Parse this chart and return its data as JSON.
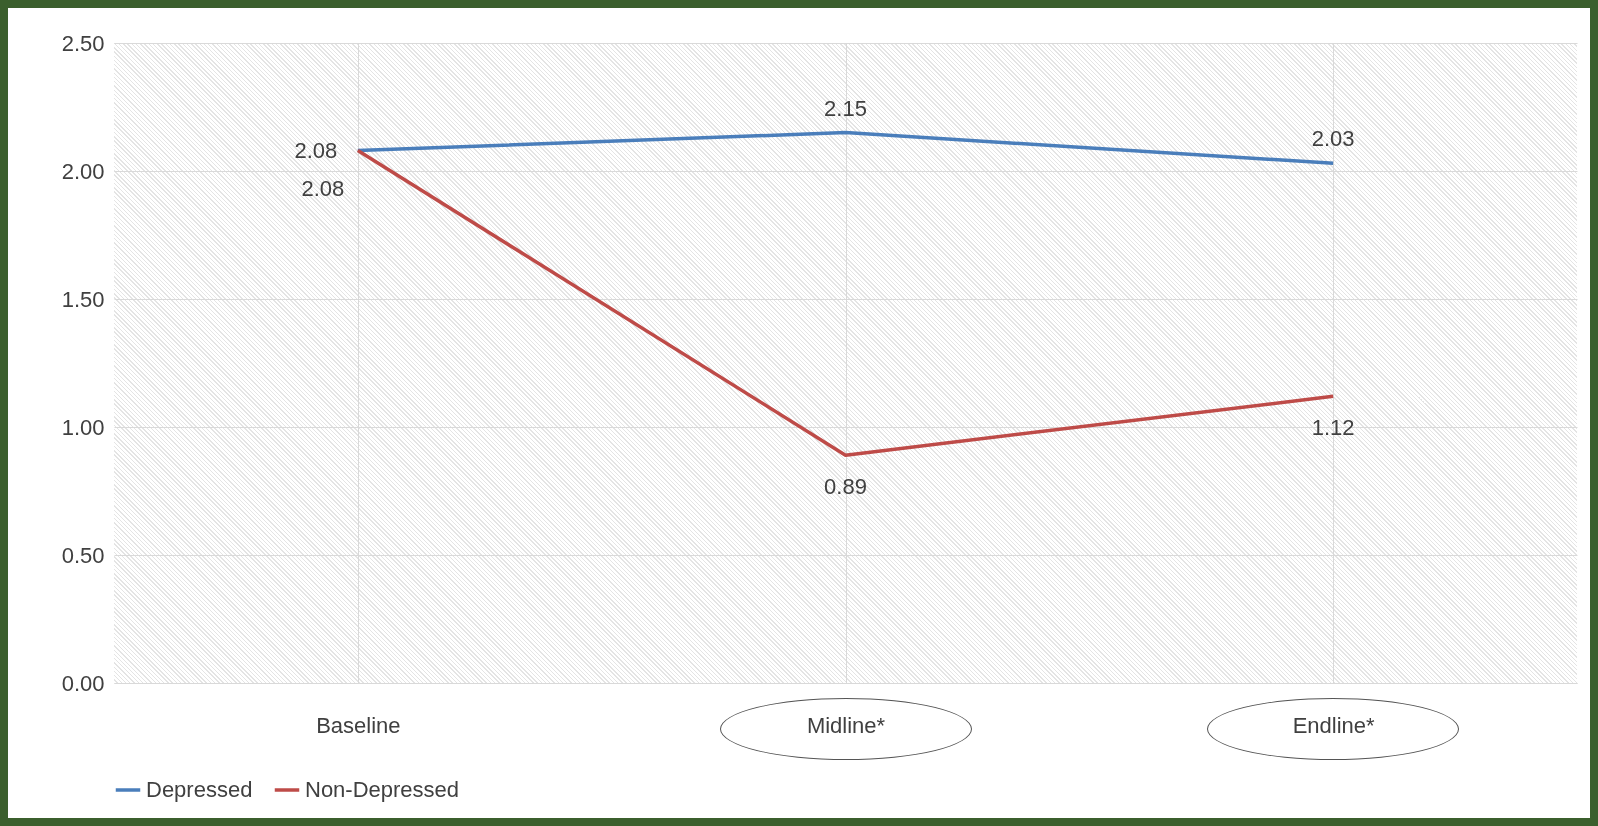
{
  "chart_data": {
    "type": "line",
    "categories": [
      "Baseline",
      "Midline*",
      "Endline*"
    ],
    "series": [
      {
        "name": "Depressed",
        "color": "#4a7ebb",
        "values": [
          2.08,
          2.15,
          2.03
        ]
      },
      {
        "name": "Non-Depressed",
        "color": "#be4b48",
        "values": [
          2.08,
          0.89,
          1.12
        ]
      }
    ],
    "ylim": [
      0,
      2.5
    ],
    "yticks": [
      {
        "value": 0,
        "label": "0.00"
      },
      {
        "value": 0.5,
        "label": "0.50"
      },
      {
        "value": 1,
        "label": "1.00"
      },
      {
        "value": 1.5,
        "label": "1.50"
      },
      {
        "value": 2,
        "label": "2.00"
      },
      {
        "value": 2.5,
        "label": "2.50"
      }
    ],
    "grid": true,
    "legend": "bottom",
    "data_labels": true,
    "marker": "none",
    "line_style": "solid"
  }
}
